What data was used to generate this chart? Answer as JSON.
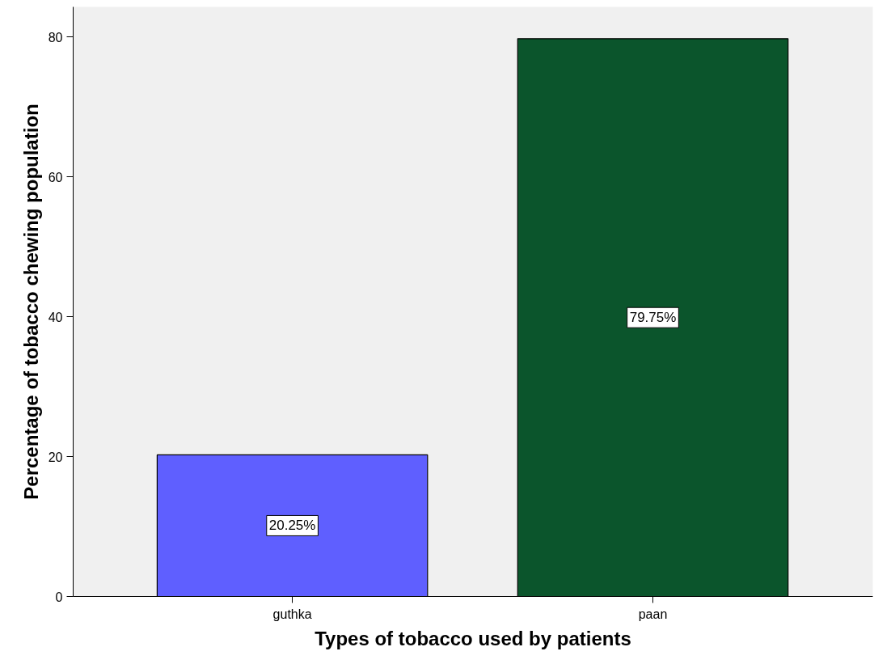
{
  "chart_data": {
    "type": "bar",
    "xlabel": "Types of tobacco used by patients",
    "ylabel": "Percentage of tobacco chewing population",
    "categories": [
      "guthka",
      "paan"
    ],
    "values": [
      20.25,
      79.75
    ],
    "colors": [
      "#5f5fff",
      "#0b552c"
    ],
    "value_labels": [
      "20.25%",
      "79.75%"
    ],
    "ylim": [
      0,
      84.3
    ],
    "yticks": [
      0,
      20,
      40,
      60,
      80
    ],
    "grid": false
  }
}
